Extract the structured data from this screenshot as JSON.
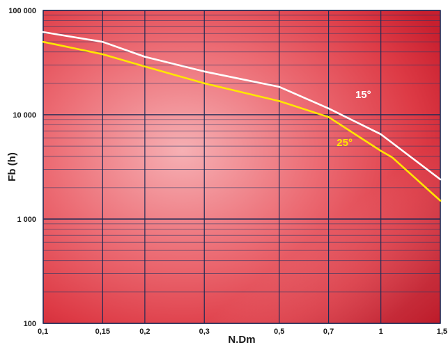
{
  "chart_data": {
    "type": "line",
    "title": "",
    "xlabel": "N.Dm",
    "ylabel": "Fb (h)",
    "x_scale": "log",
    "y_scale": "log",
    "xlim": [
      0.1,
      1.5
    ],
    "ylim": [
      100,
      100000
    ],
    "x_ticks": [
      {
        "value": 0.1,
        "label": "0,1"
      },
      {
        "value": 0.15,
        "label": "0,15"
      },
      {
        "value": 0.2,
        "label": "0,2"
      },
      {
        "value": 0.3,
        "label": "0,3"
      },
      {
        "value": 0.5,
        "label": "0,5"
      },
      {
        "value": 0.7,
        "label": "0,7"
      },
      {
        "value": 1,
        "label": "1"
      },
      {
        "value": 1.5,
        "label": "1,5"
      }
    ],
    "y_ticks": [
      {
        "value": 100,
        "label": "100"
      },
      {
        "value": 1000,
        "label": "1 000"
      },
      {
        "value": 10000,
        "label": "10 000"
      },
      {
        "value": 100000,
        "label": "100 000"
      }
    ],
    "grid": true,
    "series": [
      {
        "name": "15°",
        "color": "#ffffff",
        "x": [
          0.1,
          0.15,
          0.2,
          0.3,
          0.5,
          0.7,
          1,
          1.5
        ],
        "y": [
          62000,
          50000,
          36000,
          26000,
          18500,
          11500,
          6500,
          2400
        ]
      },
      {
        "name": "25°",
        "color": "#ffe600",
        "x": [
          0.1,
          0.15,
          0.2,
          0.3,
          0.5,
          0.7,
          1,
          1.08,
          1.5
        ],
        "y": [
          50000,
          38000,
          29000,
          20000,
          13500,
          9500,
          4500,
          3900,
          1500
        ]
      }
    ]
  }
}
